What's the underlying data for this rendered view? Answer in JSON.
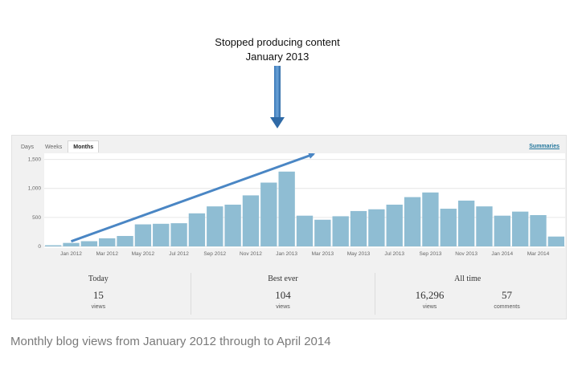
{
  "annotation": {
    "line1": "Stopped producing content",
    "line2": "January 2013"
  },
  "tabs": [
    {
      "label": "Days",
      "active": false
    },
    {
      "label": "Weeks",
      "active": false
    },
    {
      "label": "Months",
      "active": true
    }
  ],
  "summaries_link": "Summaries",
  "chart_data": {
    "type": "bar",
    "categories": [
      "Dec 2011",
      "Jan 2012",
      "Feb 2012",
      "Mar 2012",
      "Apr 2012",
      "May 2012",
      "Jun 2012",
      "Jul 2012",
      "Aug 2012",
      "Sep 2012",
      "Oct 2012",
      "Nov 2012",
      "Dec 2012",
      "Jan 2013",
      "Feb 2013",
      "Mar 2013",
      "Apr 2013",
      "May 2013",
      "Jun 2013",
      "Jul 2013",
      "Aug 2013",
      "Sep 2013",
      "Oct 2013",
      "Nov 2013",
      "Dec 2013",
      "Jan 2014",
      "Feb 2014",
      "Mar 2014",
      "Apr 2014"
    ],
    "values": [
      20,
      60,
      90,
      140,
      180,
      380,
      390,
      400,
      570,
      690,
      720,
      880,
      1100,
      1290,
      530,
      460,
      520,
      610,
      640,
      720,
      850,
      930,
      650,
      790,
      690,
      530,
      600,
      540,
      170
    ],
    "tick_labels": [
      "Jan 2012",
      "Mar 2012",
      "May 2012",
      "Jul 2012",
      "Sep 2012",
      "Nov 2012",
      "Jan 2013",
      "Mar 2013",
      "May 2013",
      "Jul 2013",
      "Sep 2013",
      "Nov 2013",
      "Jan 2014",
      "Mar 2014"
    ],
    "y_ticks": [
      "0",
      "500",
      "1,000",
      "1,500"
    ],
    "y_tick_values": [
      0,
      500,
      1000,
      1500
    ],
    "ylim": [
      0,
      1550
    ],
    "grid": true,
    "bar_color": "#8fbdd3",
    "trend_arrow_color": "#4a86c4"
  },
  "stats": {
    "today": {
      "label": "Today",
      "value": "15",
      "unit": "views"
    },
    "best_ever": {
      "label": "Best ever",
      "value": "104",
      "unit": "views"
    },
    "all_time": {
      "label": "All time",
      "views": {
        "value": "16,296",
        "unit": "views"
      },
      "comments": {
        "value": "57",
        "unit": "comments"
      }
    }
  },
  "caption": "Monthly blog views from January 2012 through to April 2014"
}
